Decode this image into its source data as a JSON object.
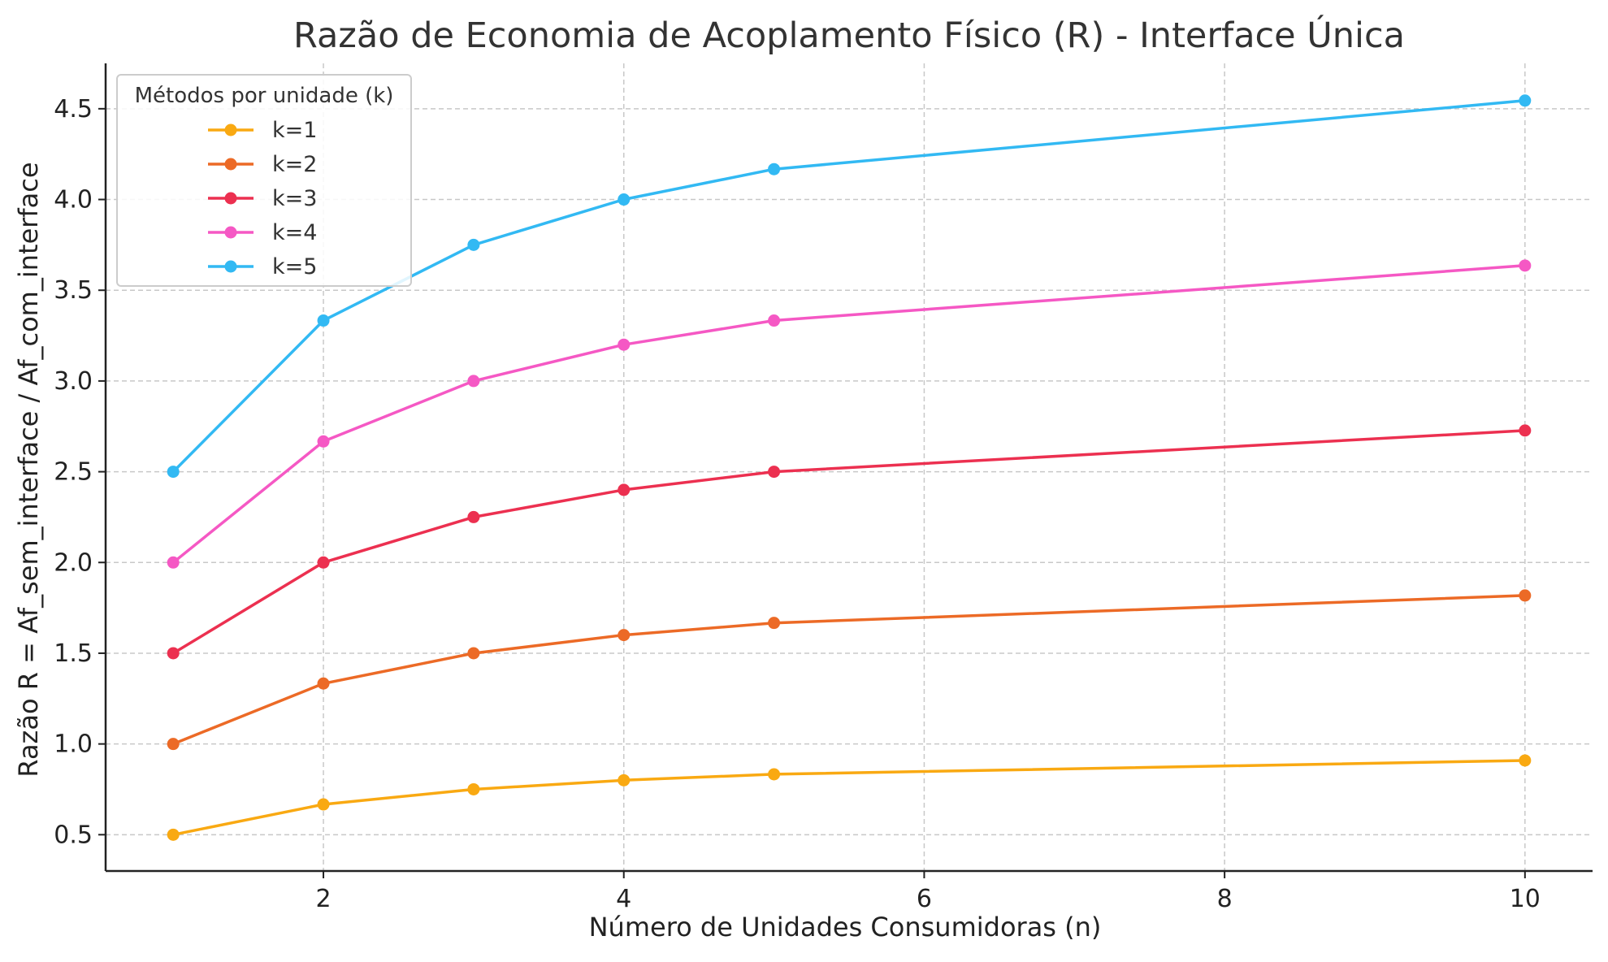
{
  "chart_data": {
    "type": "line",
    "title": "Razão de Economia de Acoplamento Físico (R) - Interface Única",
    "xlabel": "Número de Unidades Consumidoras (n)",
    "ylabel": "Razão R = Af_sem_interface / Af_com_interface",
    "xlim": [
      0.55,
      10.45
    ],
    "ylim": [
      0.3,
      4.75
    ],
    "x_ticks": [
      2,
      4,
      6,
      8,
      10
    ],
    "y_ticks": [
      0.5,
      1.0,
      1.5,
      2.0,
      2.5,
      3.0,
      3.5,
      4.0,
      4.5
    ],
    "grid": true,
    "legend": {
      "title": "Métodos por unidade (k)",
      "position": "upper left"
    },
    "x": [
      1,
      2,
      3,
      4,
      5,
      10
    ],
    "series": [
      {
        "name": "k=1",
        "color": "#F9A912",
        "values": [
          0.5,
          0.667,
          0.75,
          0.8,
          0.833,
          0.909
        ]
      },
      {
        "name": "k=2",
        "color": "#EC6A26",
        "values": [
          1.0,
          1.333,
          1.5,
          1.6,
          1.667,
          1.818
        ]
      },
      {
        "name": "k=3",
        "color": "#EC3050",
        "values": [
          1.5,
          2.0,
          2.25,
          2.4,
          2.5,
          2.727
        ]
      },
      {
        "name": "k=4",
        "color": "#F558C4",
        "values": [
          2.0,
          2.667,
          3.0,
          3.2,
          3.333,
          3.636
        ]
      },
      {
        "name": "k=5",
        "color": "#32B9F3",
        "values": [
          2.5,
          3.333,
          3.75,
          4.0,
          4.167,
          4.545
        ]
      }
    ]
  }
}
